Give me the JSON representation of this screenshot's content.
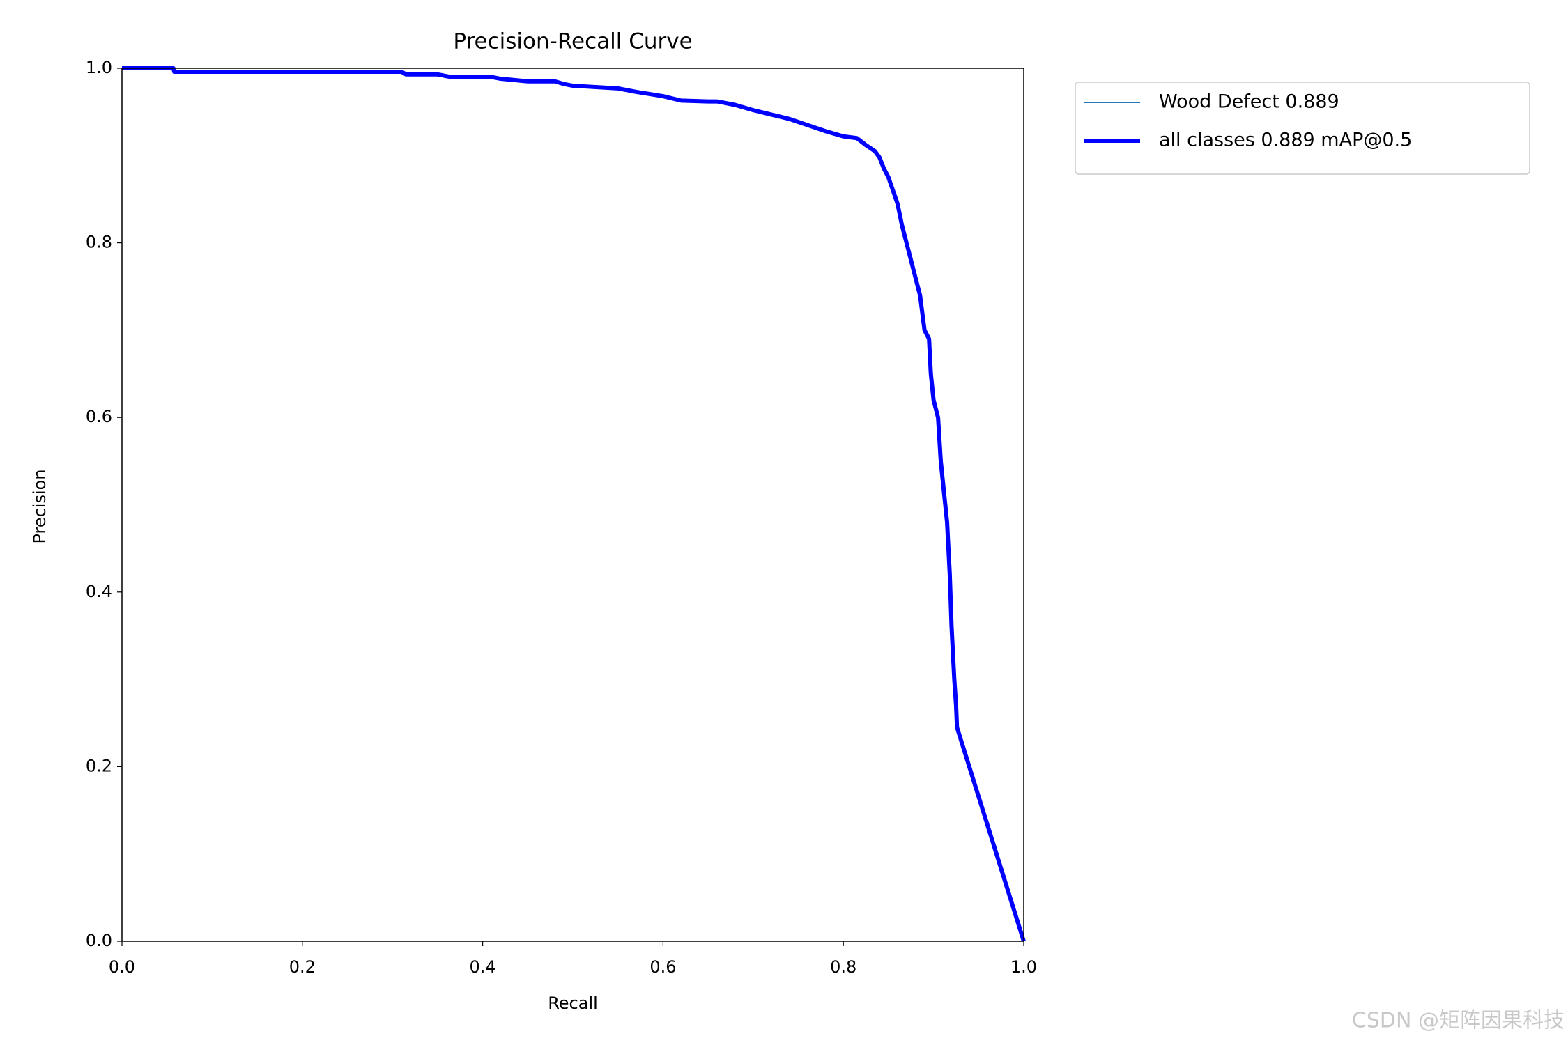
{
  "chart_data": {
    "type": "line",
    "title": "Precision-Recall Curve",
    "xlabel": "Recall",
    "ylabel": "Precision",
    "x": [
      0,
      0.057,
      0.058,
      0.31,
      0.315,
      0.35,
      0.365,
      0.41,
      0.42,
      0.45,
      0.48,
      0.49,
      0.5,
      0.55,
      0.57,
      0.6,
      0.62,
      0.65,
      0.66,
      0.68,
      0.7,
      0.72,
      0.74,
      0.76,
      0.78,
      0.8,
      0.815,
      0.825,
      0.835,
      0.84,
      0.845,
      0.85,
      0.855,
      0.86,
      0.865,
      0.87,
      0.875,
      0.88,
      0.885,
      0.89,
      0.895,
      0.897,
      0.9,
      0.905,
      0.908,
      0.91,
      0.915,
      0.918,
      0.92,
      0.923,
      0.925,
      0.926,
      1.0
    ],
    "series": [
      {
        "name": "Wood Defect 0.889",
        "color": "#1f77b4",
        "width": "thin",
        "values": [
          1.0,
          1.0,
          0.996,
          0.996,
          0.993,
          0.993,
          0.99,
          0.99,
          0.988,
          0.985,
          0.985,
          0.982,
          0.98,
          0.977,
          0.973,
          0.968,
          0.963,
          0.962,
          0.962,
          0.958,
          0.952,
          0.947,
          0.942,
          0.935,
          0.928,
          0.922,
          0.92,
          0.912,
          0.905,
          0.898,
          0.885,
          0.875,
          0.86,
          0.845,
          0.82,
          0.8,
          0.78,
          0.76,
          0.74,
          0.7,
          0.69,
          0.65,
          0.62,
          0.6,
          0.55,
          0.53,
          0.48,
          0.42,
          0.36,
          0.3,
          0.27,
          0.245,
          0.0
        ]
      },
      {
        "name": "all classes 0.889 mAP@0.5",
        "color": "#0000ff",
        "width": "thick",
        "values": [
          1.0,
          1.0,
          0.996,
          0.996,
          0.993,
          0.993,
          0.99,
          0.99,
          0.988,
          0.985,
          0.985,
          0.982,
          0.98,
          0.977,
          0.973,
          0.968,
          0.963,
          0.962,
          0.962,
          0.958,
          0.952,
          0.947,
          0.942,
          0.935,
          0.928,
          0.922,
          0.92,
          0.912,
          0.905,
          0.898,
          0.885,
          0.875,
          0.86,
          0.845,
          0.82,
          0.8,
          0.78,
          0.76,
          0.74,
          0.7,
          0.69,
          0.65,
          0.62,
          0.6,
          0.55,
          0.53,
          0.48,
          0.42,
          0.36,
          0.3,
          0.27,
          0.245,
          0.0
        ]
      }
    ],
    "xlim": [
      0,
      1
    ],
    "ylim": [
      0,
      1
    ],
    "xticks": [
      {
        "value": 0,
        "label": "0.0"
      },
      0.2,
      0.4,
      0.6,
      0.8,
      {
        "value": 1,
        "label": "1.0"
      }
    ],
    "yticks": [
      {
        "value": 0,
        "label": "0.0"
      },
      0.2,
      0.4,
      0.6,
      0.8,
      {
        "value": 1,
        "label": "1.0"
      }
    ],
    "grid": false,
    "legend": "outside upper right"
  },
  "watermark": "CSDN @矩阵因果科技"
}
